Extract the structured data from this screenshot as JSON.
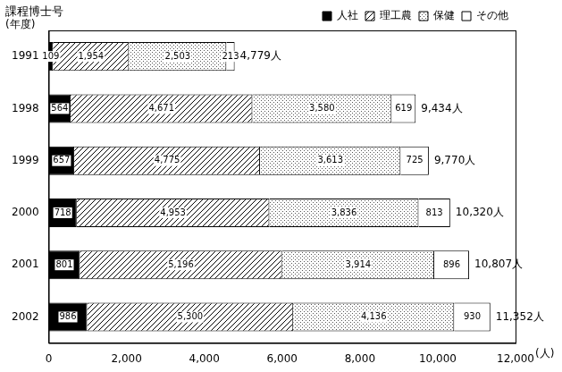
{
  "chart_data": {
    "type": "bar",
    "orientation": "horizontal",
    "stacked": true,
    "title": "課程博士号",
    "ylabel": "(年度)",
    "xlabel": "(人)",
    "categories": [
      "1991",
      "1998",
      "1999",
      "2000",
      "2001",
      "2002"
    ],
    "series": [
      {
        "name": "人社",
        "color": "#000000",
        "values": [
          109,
          564,
          657,
          718,
          801,
          986
        ]
      },
      {
        "name": "理工農",
        "color": "#ffffff",
        "values": [
          1954,
          4671,
          4775,
          4953,
          5196,
          5300
        ],
        "value_labels": [
          "1,954",
          "4,671",
          "4,775",
          "4,953",
          "5,196",
          "5,300"
        ]
      },
      {
        "name": "保健",
        "color": "#ffffff",
        "values": [
          2503,
          3580,
          3613,
          3836,
          3914,
          4136
        ],
        "value_labels": [
          "2,503",
          "3,580",
          "3,613",
          "3,836",
          "3,914",
          "4,136"
        ]
      },
      {
        "name": "その他",
        "color": "#ffffff",
        "values": [
          213,
          619,
          725,
          813,
          896,
          930
        ]
      }
    ],
    "totals": {
      "values": [
        4779,
        9434,
        9770,
        10320,
        10807,
        11352
      ],
      "value_labels": [
        "4,779人",
        "9,434人",
        "9,770人",
        "10,320人",
        "10,807人",
        "11,352人"
      ]
    },
    "xlim": [
      0,
      12000
    ],
    "xticks": [
      0,
      {
        "value": 2000,
        "label": "2,000"
      },
      {
        "value": 4000,
        "label": "4,000"
      },
      {
        "value": 6000,
        "label": "6,000"
      },
      {
        "value": 8000,
        "label": "8,000"
      },
      {
        "value": 10000,
        "label": "10,000"
      },
      {
        "value": 12000,
        "label": "12,000"
      }
    ],
    "grid": false,
    "data_labels": true,
    "legend": "top-right"
  }
}
